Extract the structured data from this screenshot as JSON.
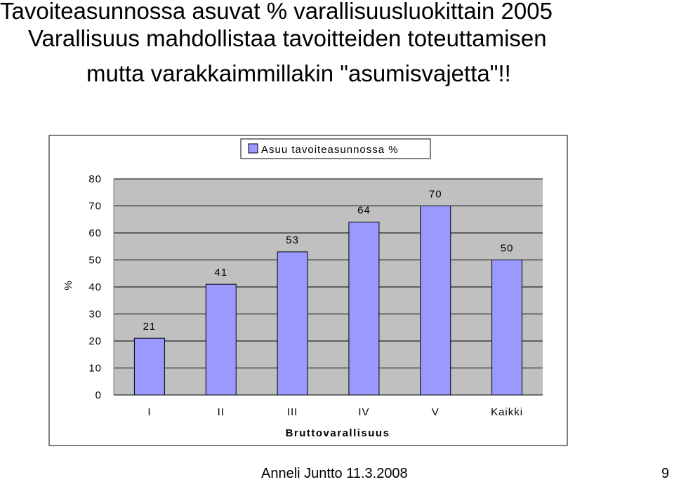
{
  "slide": {
    "title_line1": "Tavoiteasunnossa asuvat % varallisuusluokittain  2005",
    "title_line2": "Varallisuus mahdollistaa tavoitteiden toteuttamisen",
    "title_line3": "mutta varakkaimmillakin \"asumisvajetta\"!!",
    "footer_author": "Anneli Juntto 11.3.2008",
    "page_number": "9"
  },
  "chart_data": {
    "type": "bar",
    "categories": [
      "I",
      "II",
      "III",
      "IV",
      "V",
      "Kaikki"
    ],
    "series": [
      {
        "name": "Asuu tavoiteasunnossa %",
        "values": [
          21,
          41,
          53,
          64,
          70,
          50
        ],
        "color": "#9999ff"
      }
    ],
    "data_labels": [
      "21",
      "41",
      "53",
      "64",
      "70",
      "50"
    ],
    "xlabel": "Bruttovarallisuus",
    "ylabel": "%",
    "ylim": [
      0,
      80
    ],
    "yticks": [
      0,
      10,
      20,
      30,
      40,
      50,
      60,
      70,
      80
    ],
    "grid": "horizontal",
    "plot_background": "#c0c0c0",
    "legend_position": "top-center"
  }
}
